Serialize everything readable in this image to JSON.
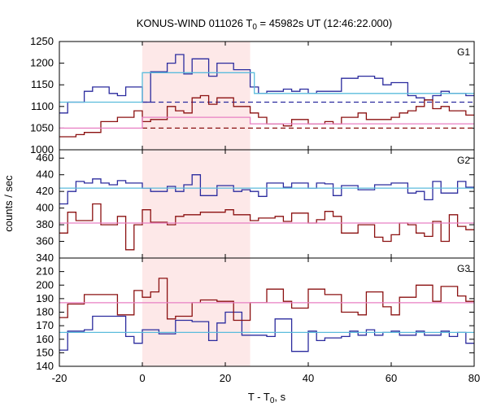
{
  "chart_data": {
    "type": "line",
    "title_main": "KONUS-WIND 011026 T",
    "title_sub": "0",
    "title_rest": " = 45982s UT (12:46:22.000)",
    "xlabel_main": "T - T",
    "xlabel_sub": "0",
    "xlabel_rest": ", s",
    "ylabel": "counts / sec",
    "xlim": [
      -20,
      80
    ],
    "x_ticks": [
      -20,
      0,
      20,
      40,
      60,
      80
    ],
    "highlight_interval": [
      0,
      26
    ],
    "colors": {
      "series_a": "#2b2b9e",
      "series_b": "#8b1010",
      "fit_a": "#5bbcdc",
      "fit_b": "#e87fc3",
      "highlight": "#fde8e8"
    },
    "bins_x": [
      -20,
      -18,
      -16,
      -14,
      -12,
      -10,
      -8,
      -6,
      -4,
      -2,
      0,
      2,
      4,
      6,
      8,
      10,
      12,
      14,
      16,
      18,
      20,
      22,
      24,
      26,
      28,
      30,
      32,
      34,
      36,
      38,
      40,
      42,
      44,
      46,
      48,
      50,
      52,
      54,
      56,
      58,
      60,
      62,
      64,
      66,
      68,
      70,
      72,
      74,
      76,
      78,
      80
    ],
    "panels": [
      {
        "label": "G1",
        "ylim": [
          1000,
          1250
        ],
        "y_ticks": [
          1000,
          1050,
          1100,
          1150,
          1200,
          1250
        ],
        "series": [
          {
            "color_key": "series_a",
            "values": [
              1085,
              1110,
              1110,
              1135,
              1145,
              1145,
              1130,
              1125,
              1145,
              1145,
              1110,
              1180,
              1180,
              1200,
              1220,
              1175,
              1210,
              1210,
              1170,
              1200,
              1200,
              1185,
              1185,
              1145,
              1130,
              1135,
              1135,
              1140,
              1135,
              1140,
              1130,
              1135,
              1135,
              1135,
              1165,
              1165,
              1170,
              1170,
              1165,
              1150,
              1155,
              1155,
              1125,
              1120,
              1115,
              1125,
              1135,
              1130,
              1130,
              1125
            ]
          },
          {
            "color_key": "series_b",
            "values": [
              1030,
              1030,
              1035,
              1040,
              1040,
              1065,
              1065,
              1075,
              1075,
              1090,
              1065,
              1070,
              1070,
              1100,
              1090,
              1085,
              1120,
              1125,
              1105,
              1120,
              1120,
              1100,
              1100,
              1085,
              1075,
              1060,
              1060,
              1055,
              1070,
              1070,
              1060,
              1060,
              1065,
              1060,
              1075,
              1075,
              1085,
              1070,
              1070,
              1070,
              1075,
              1085,
              1090,
              1100,
              1115,
              1095,
              1100,
              1090,
              1090,
              1080
            ]
          }
        ],
        "fits": [
          {
            "color_key": "fit_a",
            "x": [
              -20,
              0,
              0,
              27,
              27,
              80
            ],
            "y": [
              1110,
              1110,
              1178,
              1178,
              1130,
              1130
            ]
          },
          {
            "color_key": "fit_b",
            "x": [
              -20,
              0,
              0,
              26,
              26,
              80
            ],
            "y": [
              1050,
              1050,
              1075,
              1075,
              1060,
              1060
            ]
          }
        ],
        "backgrounds": [
          {
            "color_key": "series_a",
            "y": 1110
          },
          {
            "color_key": "series_b",
            "y": 1050
          }
        ]
      },
      {
        "label": "G2",
        "ylim": [
          340,
          470
        ],
        "y_ticks": [
          340,
          360,
          380,
          400,
          420,
          440,
          460
        ],
        "series": [
          {
            "color_key": "series_a",
            "values": [
              405,
              420,
              432,
              430,
              435,
              430,
              428,
              433,
              430,
              430,
              424,
              420,
              420,
              426,
              420,
              428,
              440,
              415,
              415,
              427,
              427,
              420,
              422,
              420,
              414,
              430,
              430,
              425,
              430,
              430,
              424,
              430,
              429,
              415,
              427,
              427,
              422,
              422,
              428,
              428,
              430,
              430,
              418,
              420,
              410,
              432,
              418,
              418,
              432,
              425
            ]
          },
          {
            "color_key": "series_b",
            "values": [
              370,
              395,
              385,
              385,
              405,
              380,
              380,
              390,
              350,
              380,
              398,
              383,
              383,
              380,
              390,
              392,
              392,
              395,
              395,
              395,
              398,
              392,
              392,
              385,
              388,
              388,
              390,
              384,
              394,
              394,
              382,
              386,
              396,
              390,
              370,
              370,
              380,
              380,
              365,
              360,
              368,
              382,
              380,
              370,
              366,
              384,
              360,
              392,
              378,
              374
            ]
          }
        ],
        "fits": [
          {
            "color_key": "fit_a",
            "x": [
              -20,
              80
            ],
            "y": [
              424,
              424
            ]
          },
          {
            "color_key": "fit_b",
            "x": [
              -20,
              80
            ],
            "y": [
              382,
              382
            ]
          }
        ]
      },
      {
        "label": "G3",
        "ylim": [
          140,
          220
        ],
        "y_ticks": [
          140,
          150,
          160,
          170,
          180,
          190,
          200,
          210
        ],
        "series": [
          {
            "color_key": "series_a",
            "values": [
              152,
              166,
              166,
              167,
              177,
              177,
              177,
              177,
              162,
              157,
              167,
              167,
              164,
              164,
              174,
              174,
              173,
              173,
              159,
              172,
              180,
              180,
              163,
              163,
              163,
              162,
              175,
              175,
              151,
              151,
              166,
              159,
              161,
              161,
              162,
              166,
              163,
              167,
              163,
              165,
              166,
              163,
              163,
              166,
              163,
              163,
              166,
              162,
              165,
              157
            ]
          },
          {
            "color_key": "series_b",
            "values": [
              176,
              186,
              186,
              193,
              193,
              193,
              193,
              178,
              178,
              196,
              191,
              195,
              205,
              175,
              177,
              177,
              187,
              189,
              189,
              188,
              188,
              174,
              174,
              187,
              187,
              197,
              197,
              188,
              183,
              183,
              197,
              197,
              193,
              193,
              180,
              180,
              178,
              195,
              195,
              184,
              178,
              191,
              191,
              200,
              200,
              188,
              199,
              199,
              192,
              188
            ]
          }
        ],
        "fits": [
          {
            "color_key": "fit_a",
            "x": [
              -20,
              80
            ],
            "y": [
              165,
              165
            ]
          },
          {
            "color_key": "fit_b",
            "x": [
              -20,
              80
            ],
            "y": [
              187,
              187
            ]
          }
        ]
      }
    ]
  }
}
